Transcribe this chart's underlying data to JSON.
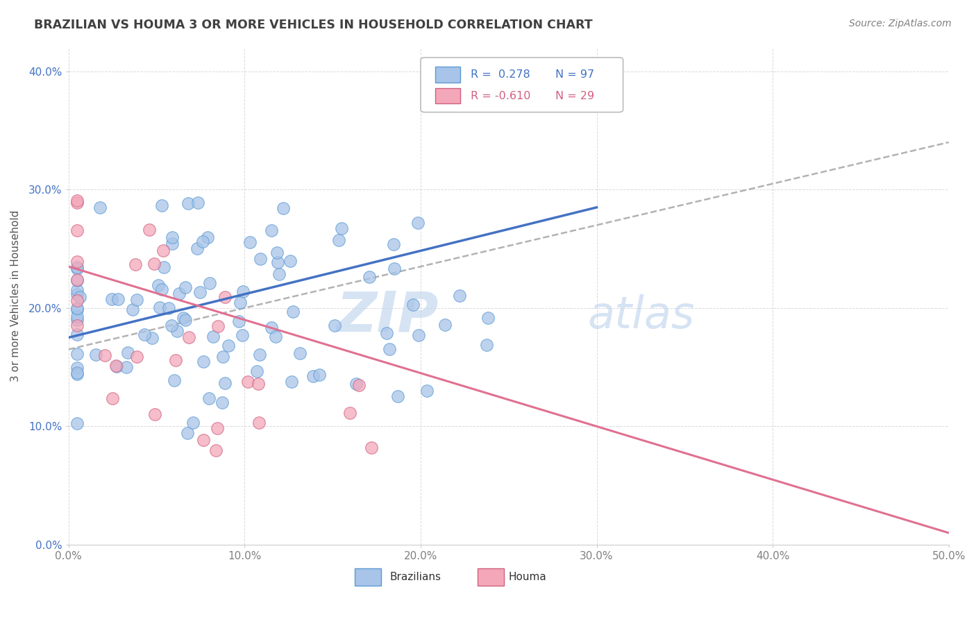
{
  "title": "BRAZILIAN VS HOUMA 3 OR MORE VEHICLES IN HOUSEHOLD CORRELATION CHART",
  "source": "Source: ZipAtlas.com",
  "ylabel": "3 or more Vehicles in Household",
  "xlim": [
    0.0,
    0.5
  ],
  "ylim": [
    0.0,
    0.42
  ],
  "xticks": [
    0.0,
    0.1,
    0.2,
    0.3,
    0.4,
    0.5
  ],
  "yticks": [
    0.0,
    0.1,
    0.2,
    0.3,
    0.4
  ],
  "xticklabels": [
    "0.0%",
    "10.0%",
    "20.0%",
    "30.0%",
    "40.0%",
    "50.0%"
  ],
  "yticklabels": [
    "0.0%",
    "10.0%",
    "20.0%",
    "30.0%",
    "40.0%"
  ],
  "watermark_zip": "ZIP",
  "watermark_atlas": "atlas",
  "legend_r_braz": "R =  0.278",
  "legend_n_braz": "N = 97",
  "legend_r_houma": "R = -0.610",
  "legend_n_houma": "N = 29",
  "braz_dot_color": "#a8c4e8",
  "braz_edge_color": "#5b9bd5",
  "houma_dot_color": "#f4a7b9",
  "houma_edge_color": "#d06080",
  "trend_braz_color": "#4472c4",
  "trend_houma_color": "#e07090",
  "trend_dash_color": "#aaaaaa",
  "background_color": "#ffffff",
  "grid_color": "#d0d0d0",
  "title_color": "#404040",
  "source_color": "#808080",
  "yaxis_tick_color": "#4472c4",
  "xaxis_tick_color": "#808080",
  "legend_text_braz_color": "#4472c4",
  "legend_text_houma_color": "#d06080"
}
